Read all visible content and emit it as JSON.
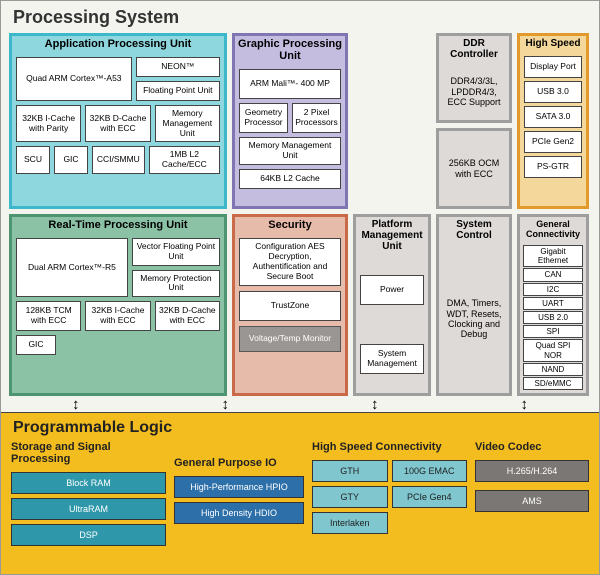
{
  "colors": {
    "apu_border": "#3db8cb",
    "apu_bg": "#8fd7de",
    "rtp_border": "#4d9470",
    "rtp_bg": "#8bc2a6",
    "gpu_border": "#8076b3",
    "gpu_bg": "#c4bde0",
    "sec_border": "#c96a48",
    "sec_bg": "#e7bba9",
    "pmu_border": "#9e9e9e",
    "pmu_bg": "#dedad7",
    "sys_border": "#9e9e9e",
    "sys_bg": "#dedad7",
    "ddr_border": "#9e9e9e",
    "ddr_bg": "#dedad7",
    "ocm_border": "#9e9e9e",
    "ocm_bg": "#dedad7",
    "hs_border": "#e39a2d",
    "hs_bg": "#f4d79a",
    "gc_border": "#9e9e9e",
    "gc_bg": "#dedad7",
    "vt_bg": "#9a9693",
    "vt_text": "#ffffff",
    "pl_bg": "#f3bd1f",
    "ssp_cell": "#2e97a9",
    "gpio_cell": "#2d6fa8",
    "hsc_cell": "#7fc6cf",
    "vc_cell": "#7a7774"
  },
  "titles": {
    "ps": "Processing System",
    "pl": "Programmable Logic"
  },
  "apu": {
    "title": "Application Processing Unit",
    "core": "Quad ARM Cortex™-A53",
    "neon": "NEON™",
    "fpu": "Floating Point Unit",
    "icache": "32KB I-Cache with Parity",
    "dcache": "32KB D-Cache with ECC",
    "mmu": "Memory Management Unit",
    "scu": "SCU",
    "gic": "GIC",
    "cci": "CCI/SMMU",
    "l2": "1MB L2 Cache/ECC"
  },
  "rtp": {
    "title": "Real-Time Processing Unit",
    "core": "Dual ARM Cortex™-R5",
    "vfpu": "Vector Floating Point Unit",
    "mpu": "Memory Protection Unit",
    "tcm": "128KB TCM with ECC",
    "icache": "32KB I-Cache with ECC",
    "dcache": "32KB D-Cache with ECC",
    "gic": "GIC"
  },
  "gpu": {
    "title": "Graphic Processing Unit",
    "core": "ARM Mali™- 400 MP",
    "geo": "Geometry Processor",
    "pix": "2 Pixel Processors",
    "mmu": "Memory Management Unit",
    "l2": "64KB L2 Cache"
  },
  "sec": {
    "title": "Security",
    "aes": "Configuration AES Decryption, Authentification and Secure Boot",
    "tz": "TrustZone",
    "vt": "Voltage/Temp Monitor"
  },
  "pmu": {
    "title": "Platform Management Unit",
    "power": "Power",
    "sys": "System Management"
  },
  "sysctl": {
    "title": "System Control",
    "text": "DMA, Timers, WDT, Resets, Clocking and Debug"
  },
  "ddr": {
    "title": "DDR Controller",
    "text": "DDR4/3/3L, LPDDR4/3, ECC Support"
  },
  "ocm": "256KB OCM with ECC",
  "hs": {
    "title": "High Speed",
    "items": [
      "Display Port",
      "USB 3.0",
      "SATA 3.0",
      "PCIe Gen2",
      "PS-GTR"
    ]
  },
  "gc": {
    "title": "General Connectivity",
    "items": [
      "Gigabit Ethernet",
      "CAN",
      "I2C",
      "UART",
      "USB 2.0",
      "SPI",
      "Quad SPI NOR",
      "NAND",
      "SD/eMMC"
    ]
  },
  "pl": {
    "ssp": {
      "title": "Storage and Signal Processing",
      "items": [
        "Block RAM",
        "UltraRAM",
        "DSP"
      ]
    },
    "gpio": {
      "title": "General Purpose IO",
      "items": [
        "High-Performance HPIO",
        "High Density HDIO"
      ]
    },
    "hsc": {
      "title": "High Speed Connectivity",
      "left": [
        "GTH",
        "GTY",
        "Interlaken"
      ],
      "right": [
        "100G EMAC",
        "PCIe Gen4"
      ]
    },
    "vc": {
      "title": "Video Codec",
      "items": [
        "H.265/H.264",
        "AMS"
      ]
    }
  }
}
